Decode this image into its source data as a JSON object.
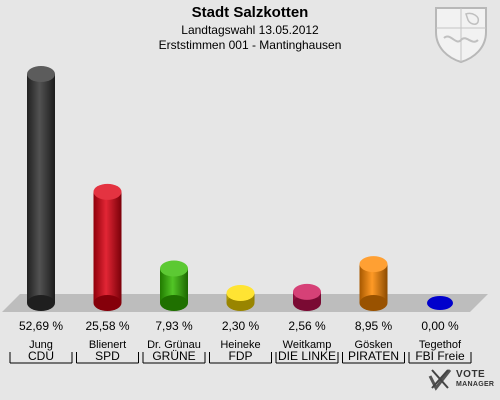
{
  "header": {
    "title": "Stadt Salzkotten",
    "subtitle": "Landtagswahl 13.05.2012",
    "subtitle2": "Erststimmen 001 - Mantinghausen"
  },
  "brand": {
    "line1": "VOTE",
    "line2": "MANAGER"
  },
  "chart_data": {
    "type": "bar",
    "title": "Stadt Salzkotten",
    "subtitle": "Landtagswahl 13.05.2012 — Erststimmen 001 - Mantinghausen",
    "categories": [
      "CDU",
      "SPD",
      "GRÜNE",
      "FDP",
      "DIE LINKE",
      "PIRATEN",
      "FBI Freie"
    ],
    "candidates": [
      "Jung",
      "Blienert",
      "Dr. Grünau",
      "Heineke",
      "Weitkamp",
      "Gösken",
      "Tegethof"
    ],
    "values": [
      52.69,
      25.58,
      7.93,
      2.3,
      2.56,
      8.95,
      0.0
    ],
    "value_labels": [
      "52,69 %",
      "25,58 %",
      "7,93 %",
      "2,30 %",
      "2,56 %",
      "8,95 %",
      "0,00 %"
    ],
    "colors": [
      "#333333",
      "#dd0011",
      "#33bb00",
      "#ffdd00",
      "#cc1155",
      "#ff8800",
      "#0000cc"
    ],
    "ylim": [
      0,
      55
    ],
    "grid": false,
    "legend": "none"
  }
}
